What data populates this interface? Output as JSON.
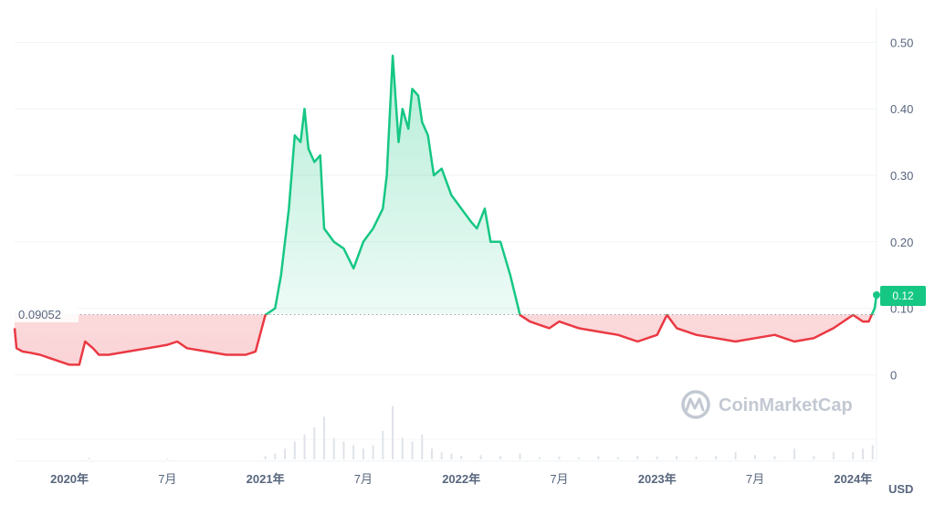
{
  "chart_data": {
    "type": "line",
    "title": "",
    "currency_label": "USD",
    "ylim": [
      -0.13,
      0.55
    ],
    "y_ticks": [
      "0.50",
      "0.40",
      "0.30",
      "0.20",
      "0.10",
      "0"
    ],
    "y_tick_values": [
      0.5,
      0.4,
      0.3,
      0.2,
      0.1,
      0
    ],
    "x_ticks": [
      {
        "label": "2020年",
        "t": 2020.0,
        "major": true
      },
      {
        "label": "7月",
        "t": 2020.5,
        "major": false
      },
      {
        "label": "2021年",
        "t": 2021.0,
        "major": true
      },
      {
        "label": "7月",
        "t": 2021.5,
        "major": false
      },
      {
        "label": "2022年",
        "t": 2022.0,
        "major": true
      },
      {
        "label": "7月",
        "t": 2022.5,
        "major": false
      },
      {
        "label": "2023年",
        "t": 2023.0,
        "major": true
      },
      {
        "label": "7月",
        "t": 2023.5,
        "major": false
      },
      {
        "label": "2024年",
        "t": 2024.0,
        "major": true
      }
    ],
    "xlim": [
      2019.72,
      2024.12
    ],
    "reference_price": 0.09052,
    "reference_label": "0.09052",
    "current_price_label": "0.12",
    "up_color": "#16c784",
    "down_color": "#ea3943",
    "series": [
      {
        "values": [
          [
            2019.72,
            0.07
          ],
          [
            2019.73,
            0.04
          ],
          [
            2019.76,
            0.035
          ],
          [
            2019.8,
            0.033
          ],
          [
            2019.85,
            0.03
          ],
          [
            2019.9,
            0.025
          ],
          [
            2019.95,
            0.02
          ],
          [
            2020.0,
            0.015
          ],
          [
            2020.05,
            0.015
          ],
          [
            2020.08,
            0.05
          ],
          [
            2020.12,
            0.04
          ],
          [
            2020.15,
            0.03
          ],
          [
            2020.2,
            0.03
          ],
          [
            2020.3,
            0.035
          ],
          [
            2020.4,
            0.04
          ],
          [
            2020.5,
            0.045
          ],
          [
            2020.55,
            0.05
          ],
          [
            2020.6,
            0.04
          ],
          [
            2020.7,
            0.035
          ],
          [
            2020.8,
            0.03
          ],
          [
            2020.9,
            0.03
          ],
          [
            2020.95,
            0.035
          ],
          [
            2021.0,
            0.09
          ],
          [
            2021.05,
            0.1
          ],
          [
            2021.08,
            0.15
          ],
          [
            2021.12,
            0.25
          ],
          [
            2021.15,
            0.36
          ],
          [
            2021.18,
            0.35
          ],
          [
            2021.2,
            0.4
          ],
          [
            2021.22,
            0.34
          ],
          [
            2021.25,
            0.32
          ],
          [
            2021.28,
            0.33
          ],
          [
            2021.3,
            0.22
          ],
          [
            2021.35,
            0.2
          ],
          [
            2021.4,
            0.19
          ],
          [
            2021.45,
            0.16
          ],
          [
            2021.5,
            0.2
          ],
          [
            2021.55,
            0.22
          ],
          [
            2021.6,
            0.25
          ],
          [
            2021.62,
            0.3
          ],
          [
            2021.65,
            0.48
          ],
          [
            2021.68,
            0.35
          ],
          [
            2021.7,
            0.4
          ],
          [
            2021.73,
            0.37
          ],
          [
            2021.75,
            0.43
          ],
          [
            2021.78,
            0.42
          ],
          [
            2021.8,
            0.38
          ],
          [
            2021.83,
            0.36
          ],
          [
            2021.86,
            0.3
          ],
          [
            2021.9,
            0.31
          ],
          [
            2021.95,
            0.27
          ],
          [
            2022.0,
            0.25
          ],
          [
            2022.05,
            0.23
          ],
          [
            2022.08,
            0.22
          ],
          [
            2022.12,
            0.25
          ],
          [
            2022.15,
            0.2
          ],
          [
            2022.2,
            0.2
          ],
          [
            2022.25,
            0.15
          ],
          [
            2022.3,
            0.09
          ],
          [
            2022.35,
            0.08
          ],
          [
            2022.4,
            0.075
          ],
          [
            2022.45,
            0.07
          ],
          [
            2022.5,
            0.08
          ],
          [
            2022.6,
            0.07
          ],
          [
            2022.7,
            0.065
          ],
          [
            2022.8,
            0.06
          ],
          [
            2022.9,
            0.05
          ],
          [
            2023.0,
            0.06
          ],
          [
            2023.05,
            0.09
          ],
          [
            2023.1,
            0.07
          ],
          [
            2023.2,
            0.06
          ],
          [
            2023.3,
            0.055
          ],
          [
            2023.4,
            0.05
          ],
          [
            2023.5,
            0.055
          ],
          [
            2023.6,
            0.06
          ],
          [
            2023.7,
            0.05
          ],
          [
            2023.8,
            0.055
          ],
          [
            2023.9,
            0.07
          ],
          [
            2024.0,
            0.09
          ],
          [
            2024.05,
            0.08
          ],
          [
            2024.08,
            0.08
          ],
          [
            2024.11,
            0.1
          ],
          [
            2024.12,
            0.12
          ]
        ]
      }
    ],
    "volume": [
      [
        2020.1,
        0.02
      ],
      [
        2020.5,
        0.01
      ],
      [
        2021.0,
        0.05
      ],
      [
        2021.05,
        0.08
      ],
      [
        2021.1,
        0.15
      ],
      [
        2021.15,
        0.25
      ],
      [
        2021.2,
        0.35
      ],
      [
        2021.25,
        0.45
      ],
      [
        2021.3,
        0.6
      ],
      [
        2021.35,
        0.3
      ],
      [
        2021.4,
        0.25
      ],
      [
        2021.45,
        0.2
      ],
      [
        2021.5,
        0.15
      ],
      [
        2021.55,
        0.2
      ],
      [
        2021.6,
        0.4
      ],
      [
        2021.65,
        0.75
      ],
      [
        2021.7,
        0.3
      ],
      [
        2021.75,
        0.25
      ],
      [
        2021.8,
        0.35
      ],
      [
        2021.85,
        0.15
      ],
      [
        2021.9,
        0.1
      ],
      [
        2021.95,
        0.08
      ],
      [
        2022.0,
        0.05
      ],
      [
        2022.1,
        0.06
      ],
      [
        2022.2,
        0.05
      ],
      [
        2022.3,
        0.08
      ],
      [
        2022.4,
        0.03
      ],
      [
        2022.5,
        0.04
      ],
      [
        2022.6,
        0.03
      ],
      [
        2022.7,
        0.05
      ],
      [
        2022.8,
        0.03
      ],
      [
        2022.9,
        0.05
      ],
      [
        2023.0,
        0.04
      ],
      [
        2023.1,
        0.05
      ],
      [
        2023.2,
        0.04
      ],
      [
        2023.3,
        0.05
      ],
      [
        2023.4,
        0.1
      ],
      [
        2023.5,
        0.06
      ],
      [
        2023.6,
        0.05
      ],
      [
        2023.7,
        0.15
      ],
      [
        2023.8,
        0.05
      ],
      [
        2023.9,
        0.1
      ],
      [
        2024.0,
        0.1
      ],
      [
        2024.05,
        0.15
      ],
      [
        2024.1,
        0.2
      ]
    ]
  },
  "watermark": {
    "text": "CoinMarketCap",
    "icon": "coinmarketcap-logo-icon"
  }
}
